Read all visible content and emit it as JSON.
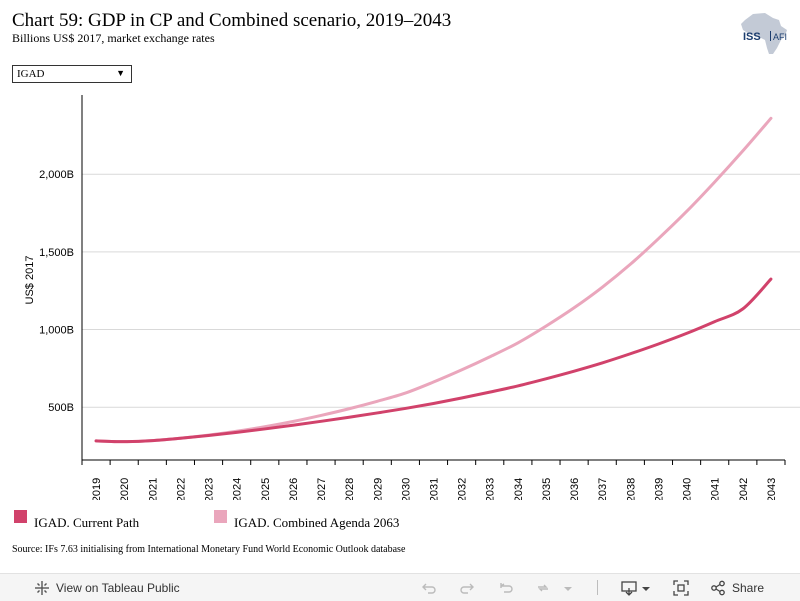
{
  "header": {
    "title": "Chart 59: GDP in CP and Combined scenario, 2019–2043",
    "subtitle": "Billions US$ 2017, market exchange rates",
    "logo_text_left": "ISS",
    "logo_text_right": "AFI"
  },
  "filter": {
    "selected": "IGAD"
  },
  "chart_data": {
    "type": "line",
    "title": "Chart 59: GDP in CP and Combined scenario, 2019–2043",
    "subtitle": "Billions US$ 2017, market exchange rates",
    "xlabel": "",
    "ylabel": "US$ 2017",
    "x": [
      "2019",
      "2020",
      "2021",
      "2022",
      "2023",
      "2024",
      "2025",
      "2026",
      "2027",
      "2028",
      "2029",
      "2030",
      "2031",
      "2032",
      "2033",
      "2034",
      "2035",
      "2036",
      "2037",
      "2038",
      "2039",
      "2040",
      "2041",
      "2042",
      "2043"
    ],
    "ylim": [
      160,
      2510
    ],
    "yticks": [
      500,
      1000,
      1500,
      2000
    ],
    "ytick_labels": [
      "500B",
      "1,000B",
      "1,500B",
      "2,000B"
    ],
    "grid": true,
    "legend_position": "bottom-left",
    "series": [
      {
        "name": "IGAD. Current Path",
        "color": "#d1426b",
        "values": [
          283,
          278,
          285,
          300,
          318,
          338,
          360,
          384,
          409,
          435,
          463,
          492,
          524,
          559,
          597,
          637,
          683,
          732,
          785,
          844,
          907,
          975,
          1051,
          1133,
          1325
        ]
      },
      {
        "name": "IGAD. Combined Agenda 2063",
        "color": "#eaa6bc",
        "values": [
          283,
          278,
          285,
          300,
          320,
          345,
          374,
          408,
          447,
          490,
          538,
          591,
          662,
          740,
          824,
          914,
          1022,
          1140,
          1272,
          1420,
          1585,
          1760,
          1950,
          2150,
          2360
        ]
      }
    ]
  },
  "source": "Source: IFs 7.63 initialising from International Monetary Fund World Economic Outlook database",
  "toolbar": {
    "view_label": "View on Tableau Public",
    "share_label": "Share"
  }
}
